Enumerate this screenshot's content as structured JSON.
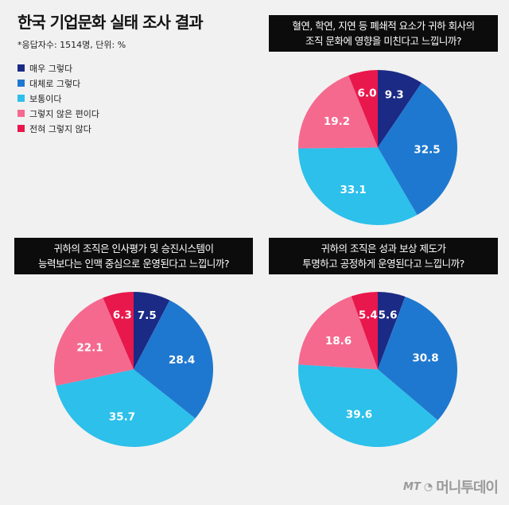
{
  "header": {
    "title": "한국 기업문화 실태 조사 결과",
    "subtitle": "*응답자수: 1514명, 단위: %"
  },
  "legend": [
    {
      "label": "매우 그렇다",
      "color": "#1b2a84"
    },
    {
      "label": "대체로 그렇다",
      "color": "#1f78cf"
    },
    {
      "label": "보통이다",
      "color": "#2cc0ea"
    },
    {
      "label": "그렇지 않은 편이다",
      "color": "#f5698f"
    },
    {
      "label": "전혀 그렇지 않다",
      "color": "#e8184c"
    }
  ],
  "logo": {
    "mt": "MT",
    "mark": "◔",
    "name": "머니투데이"
  },
  "chart_data": [
    {
      "type": "pie",
      "title_lines": [
        "혈연, 학연, 지연 등 폐쇄적 요소가 귀하 회사의",
        "조직 문화에 영향을 미친다고 느낍니까?"
      ],
      "categories": [
        "매우 그렇다",
        "대체로 그렇다",
        "보통이다",
        "그렇지 않은 편이다",
        "전혀 그렇지 않다"
      ],
      "values": [
        9.3,
        32.5,
        33.1,
        19.2,
        6.0
      ],
      "labels": [
        "9.3",
        "32.5",
        "33.1",
        "19.2",
        "6.0"
      ]
    },
    {
      "type": "pie",
      "title_lines": [
        "귀하의 조직은 인사평가 및 승진시스템이",
        "능력보다는 인맥 중심으로 운영된다고 느낍니까?"
      ],
      "categories": [
        "매우 그렇다",
        "대체로 그렇다",
        "보통이다",
        "그렇지 않은 편이다",
        "전혀 그렇지 않다"
      ],
      "values": [
        7.5,
        28.4,
        35.7,
        22.1,
        6.3
      ],
      "labels": [
        "7.5",
        "28.4",
        "35.7",
        "22.1",
        "6.3"
      ]
    },
    {
      "type": "pie",
      "title_lines": [
        "귀하의 조직은 성과 보상 제도가",
        "투명하고 공정하게 운영된다고 느낍니까?"
      ],
      "categories": [
        "매우 그렇다",
        "대체로 그렇다",
        "보통이다",
        "그렇지 않은 편이다",
        "전혀 그렇지 않다"
      ],
      "values": [
        5.6,
        30.8,
        39.6,
        18.6,
        5.4
      ],
      "labels": [
        "5.6",
        "30.8",
        "39.6",
        "18.6",
        "5.4"
      ]
    }
  ]
}
